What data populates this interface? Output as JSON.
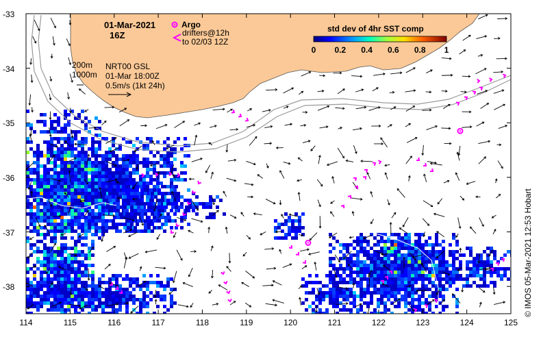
{
  "map": {
    "date": "01-Mar-2021",
    "hour": "16Z",
    "argo_label": "Argo",
    "drifter_label_1": "drifters@12h",
    "drifter_label_2": "to 02/03 12Z",
    "isobath_200": "200m",
    "isobath_1000": "1000m",
    "product": "NRT00 GSL",
    "product_time": "01-Mar 18:00Z",
    "scale_label": "0.5m/s (1kt 24h)",
    "colorbar_title": "std dev of 4hr SST comp",
    "colorbar_ticks": [
      "0",
      "0.2",
      "0.4",
      "0.6",
      "0.8",
      "1"
    ],
    "credit": "© IMOS 05-Mar-2021 12:53 Hobart",
    "lon_ticks": [
      "114",
      "115",
      "116",
      "117",
      "118",
      "119",
      "120",
      "121",
      "122",
      "123",
      "124",
      "125"
    ],
    "lat_ticks": [
      "-33",
      "-34",
      "-35",
      "-36",
      "-37",
      "-38"
    ],
    "lon_range": [
      114,
      125
    ],
    "lat_range": [
      -38.5,
      -33
    ],
    "land_color": "#fbc997",
    "argo_color": "#ff00ff",
    "argo_floats": [
      [
        123.85,
        -35.15
      ],
      [
        120.4,
        -37.2
      ]
    ]
  }
}
